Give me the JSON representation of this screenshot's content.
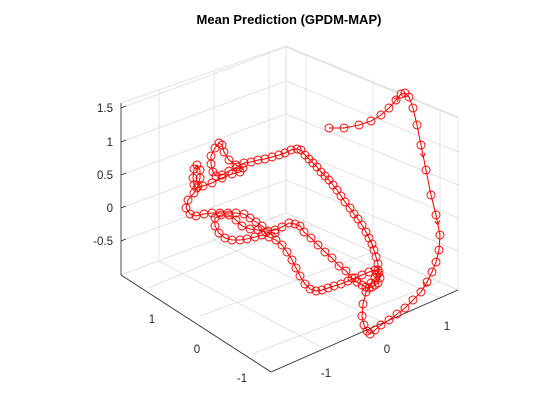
{
  "chart_data": {
    "type": "scatter",
    "title": "Mean Prediction (GPDM-MAP)",
    "xlabel": "",
    "ylabel": "",
    "zlabel": "",
    "z_ticks": [
      "-0.5",
      "0",
      "0.5",
      "1",
      "1.5"
    ],
    "left_ticks": [
      "1",
      "0",
      "-1"
    ],
    "right_ticks": [
      "-1",
      "0",
      "1"
    ],
    "grid": true,
    "line_color": "#ff0000",
    "marker": "circle",
    "view": "3d",
    "path_projected": [
      [
        329,
        128
      ],
      [
        344,
        128
      ],
      [
        359,
        125
      ],
      [
        371,
        121
      ],
      [
        381,
        115
      ],
      [
        389,
        108
      ],
      [
        396,
        100
      ],
      [
        401,
        94
      ],
      [
        405,
        93
      ],
      [
        409,
        97
      ],
      [
        413,
        108
      ],
      [
        417,
        125
      ],
      [
        421,
        145
      ],
      [
        426,
        170
      ],
      [
        431,
        195
      ],
      [
        436,
        215
      ],
      [
        440,
        235
      ],
      [
        439,
        250
      ],
      [
        436,
        262
      ],
      [
        432,
        272
      ],
      [
        427,
        282
      ],
      [
        421,
        292
      ],
      [
        413,
        300
      ],
      [
        405,
        308
      ],
      [
        397,
        314
      ],
      [
        389,
        320
      ],
      [
        381,
        325
      ],
      [
        375,
        330
      ],
      [
        370,
        334
      ],
      [
        367,
        331
      ],
      [
        364,
        325
      ],
      [
        362,
        316
      ],
      [
        363,
        304
      ],
      [
        366,
        292
      ],
      [
        371,
        283
      ],
      [
        375,
        278
      ],
      [
        377,
        274
      ],
      [
        378,
        270
      ],
      [
        378,
        264
      ],
      [
        376,
        257
      ],
      [
        374,
        250
      ],
      [
        372,
        244
      ],
      [
        369,
        238
      ],
      [
        366,
        232
      ],
      [
        362,
        225
      ],
      [
        358,
        219
      ],
      [
        354,
        214
      ],
      [
        350,
        208
      ],
      [
        345,
        202
      ],
      [
        341,
        196
      ],
      [
        337,
        190
      ],
      [
        333,
        185
      ],
      [
        329,
        180
      ],
      [
        325,
        176
      ],
      [
        321,
        172
      ],
      [
        317,
        167
      ],
      [
        313,
        163
      ],
      [
        309,
        159
      ],
      [
        305,
        155
      ],
      [
        301,
        150
      ],
      [
        297,
        149
      ],
      [
        291,
        150
      ],
      [
        285,
        153
      ],
      [
        279,
        155
      ],
      [
        272,
        157
      ],
      [
        265,
        159
      ],
      [
        258,
        160
      ],
      [
        251,
        162
      ],
      [
        244,
        163
      ],
      [
        237,
        167
      ],
      [
        229,
        171
      ],
      [
        222,
        175
      ],
      [
        216,
        176
      ],
      [
        213,
        172
      ],
      [
        211,
        164
      ],
      [
        211,
        156
      ],
      [
        215,
        148
      ],
      [
        219,
        143
      ],
      [
        222,
        145
      ],
      [
        224,
        152
      ],
      [
        229,
        160
      ],
      [
        236,
        165
      ],
      [
        243,
        168
      ],
      [
        240,
        172
      ],
      [
        232,
        174
      ],
      [
        222,
        178
      ],
      [
        212,
        183
      ],
      [
        203,
        186
      ],
      [
        197,
        188
      ],
      [
        194,
        185
      ],
      [
        193,
        178
      ],
      [
        194,
        169
      ],
      [
        197,
        165
      ],
      [
        200,
        170
      ],
      [
        200,
        178
      ],
      [
        198,
        186
      ],
      [
        194,
        193
      ],
      [
        188,
        200
      ],
      [
        186,
        208
      ],
      [
        190,
        214
      ],
      [
        196,
        216
      ],
      [
        204,
        214
      ],
      [
        212,
        213
      ],
      [
        220,
        213
      ],
      [
        228,
        213
      ],
      [
        236,
        213
      ],
      [
        244,
        214
      ],
      [
        250,
        218
      ],
      [
        256,
        222
      ],
      [
        262,
        226
      ],
      [
        268,
        231
      ],
      [
        275,
        230
      ],
      [
        282,
        227
      ],
      [
        289,
        223
      ],
      [
        295,
        224
      ],
      [
        300,
        226
      ],
      [
        304,
        232
      ],
      [
        311,
        238
      ],
      [
        318,
        245
      ],
      [
        325,
        252
      ],
      [
        332,
        258
      ],
      [
        339,
        266
      ],
      [
        346,
        271
      ],
      [
        352,
        278
      ],
      [
        357,
        282
      ],
      [
        362,
        285
      ],
      [
        366,
        287
      ],
      [
        369,
        288
      ],
      [
        372,
        287
      ],
      [
        375,
        285
      ],
      [
        378,
        283
      ],
      [
        380,
        278
      ],
      [
        379,
        273
      ],
      [
        375,
        270
      ],
      [
        369,
        272
      ],
      [
        362,
        275
      ],
      [
        355,
        278
      ],
      [
        348,
        281
      ],
      [
        341,
        284
      ],
      [
        334,
        286
      ],
      [
        328,
        288
      ],
      [
        322,
        290
      ],
      [
        316,
        291
      ],
      [
        310,
        289
      ],
      [
        305,
        284
      ],
      [
        300,
        276
      ],
      [
        296,
        268
      ],
      [
        292,
        260
      ],
      [
        287,
        252
      ],
      [
        282,
        245
      ],
      [
        276,
        240
      ],
      [
        269,
        237
      ],
      [
        262,
        235
      ],
      [
        255,
        237
      ],
      [
        247,
        239
      ],
      [
        240,
        240
      ],
      [
        232,
        240
      ],
      [
        225,
        238
      ],
      [
        219,
        233
      ],
      [
        215,
        226
      ],
      [
        215,
        218
      ],
      [
        221,
        215
      ],
      [
        229,
        215
      ],
      [
        236,
        220
      ],
      [
        242,
        226
      ],
      [
        250,
        229
      ],
      [
        258,
        230
      ],
      [
        266,
        232
      ],
      [
        275,
        233
      ]
    ]
  }
}
